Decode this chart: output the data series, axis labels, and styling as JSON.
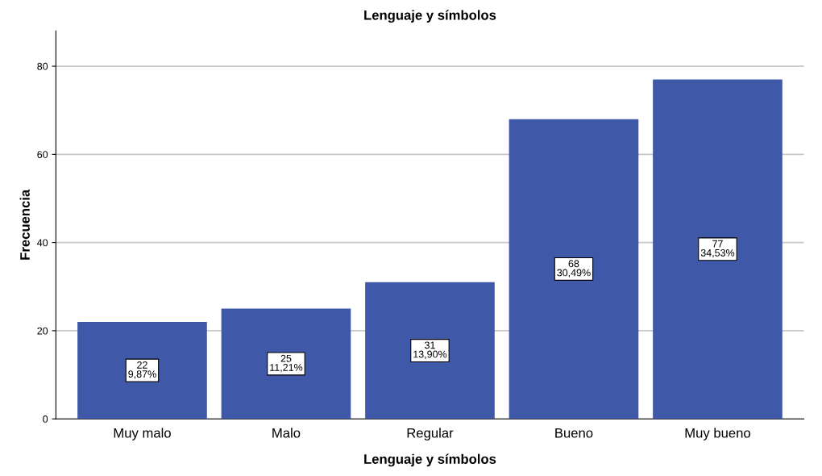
{
  "chart_data": {
    "type": "bar",
    "title": "Lenguaje y símbolos",
    "xlabel": "Lenguaje y símbolos",
    "ylabel": "Frecuencia",
    "categories": [
      "Muy malo",
      "Malo",
      "Regular",
      "Bueno",
      "Muy bueno"
    ],
    "values": [
      22,
      25,
      31,
      68,
      77
    ],
    "value_labels": [
      "22\n9,87%",
      "25\n11,21%",
      "31\n13,90%",
      "68\n30,49%",
      "77\n34,53%"
    ],
    "color": "#3f59a8",
    "ylim": [
      0,
      88
    ],
    "yticks": [
      0,
      20,
      40,
      60,
      80
    ],
    "grid": "y"
  }
}
